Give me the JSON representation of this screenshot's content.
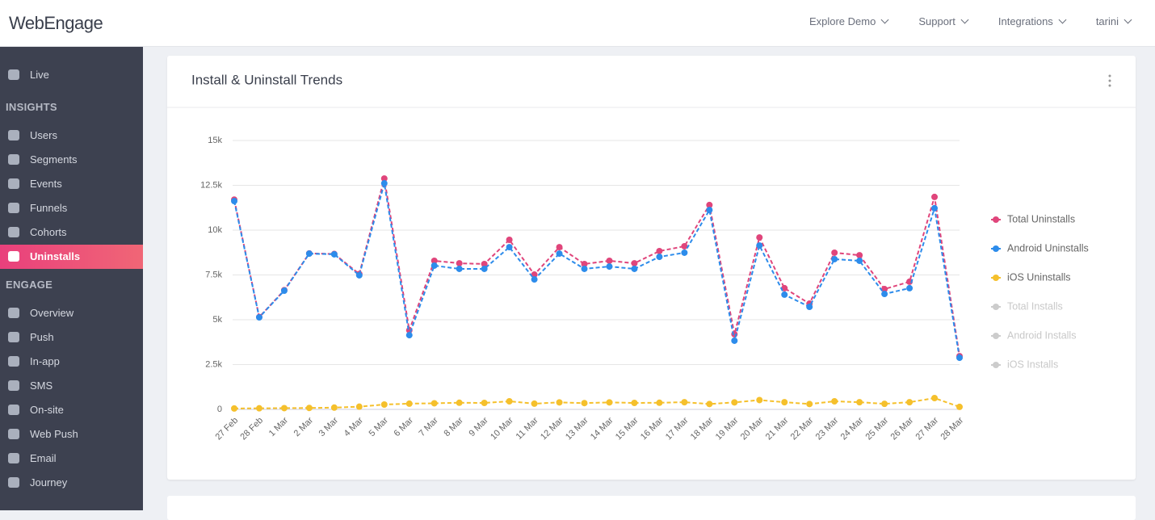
{
  "header": {
    "logo": "WebEngage",
    "nav": [
      "Explore Demo",
      "Support",
      "Integrations",
      "tarini"
    ]
  },
  "sidebar": {
    "top": "Live",
    "sections": [
      {
        "title": "INSIGHTS",
        "items": [
          "Users",
          "Segments",
          "Events",
          "Funnels",
          "Cohorts",
          "Uninstalls"
        ]
      },
      {
        "title": "ENGAGE",
        "items": [
          "Overview",
          "Push",
          "In-app",
          "SMS",
          "On-site",
          "Web Push",
          "Email",
          "Journey"
        ]
      }
    ]
  },
  "chart_data": {
    "type": "line",
    "title": "Install & Uninstall Trends",
    "categories": [
      "27 Feb",
      "28 Feb",
      "1 Mar",
      "2 Mar",
      "3 Mar",
      "4 Mar",
      "5 Mar",
      "6 Mar",
      "7 Mar",
      "8 Mar",
      "9 Mar",
      "10 Mar",
      "11 Mar",
      "12 Mar",
      "13 Mar",
      "14 Mar",
      "15 Mar",
      "16 Mar",
      "17 Mar",
      "18 Mar",
      "19 Mar",
      "20 Mar",
      "21 Mar",
      "22 Mar",
      "23 Mar",
      "24 Mar",
      "25 Mar",
      "26 Mar",
      "27 Mar",
      "28 Mar"
    ],
    "series": [
      {
        "name": "Total Uninstalls",
        "color": "#e0457b",
        "visible": true,
        "values": [
          11700,
          5150,
          6650,
          8700,
          8670,
          7550,
          12880,
          4410,
          8290,
          8150,
          8110,
          9460,
          7520,
          9050,
          8110,
          8290,
          8150,
          8830,
          9100,
          11400,
          4190,
          9590,
          6760,
          5900,
          8740,
          8600,
          6710,
          7120,
          11850,
          2970
        ]
      },
      {
        "name": "Android Uninstalls",
        "color": "#2d8ceb",
        "visible": true,
        "values": [
          11620,
          5135,
          6620,
          8690,
          8650,
          7480,
          12610,
          4140,
          8020,
          7840,
          7840,
          9050,
          7250,
          8690,
          7840,
          7970,
          7840,
          8510,
          8740,
          11120,
          3830,
          9140,
          6400,
          5720,
          8380,
          8290,
          6440,
          6760,
          11220,
          2880
        ]
      },
      {
        "name": "iOS Uninstalls",
        "color": "#f5c02c",
        "visible": true,
        "values": [
          50,
          60,
          70,
          80,
          100,
          150,
          270,
          320,
          340,
          370,
          360,
          450,
          320,
          390,
          350,
          390,
          360,
          370,
          400,
          300,
          390,
          520,
          400,
          300,
          450,
          400,
          310,
          400,
          630,
          140
        ]
      },
      {
        "name": "Total Installs",
        "color": "#cccccc",
        "visible": false
      },
      {
        "name": "Android Installs",
        "color": "#cccccc",
        "visible": false
      },
      {
        "name": "iOS Installs",
        "color": "#cccccc",
        "visible": false
      }
    ],
    "ylim": [
      0,
      15000
    ],
    "yticks": [
      0,
      {
        "value": 2500,
        "label": "2.5k"
      },
      {
        "value": 5000,
        "label": "5k"
      },
      {
        "value": 7500,
        "label": "7.5k"
      },
      {
        "value": 10000,
        "label": "10k"
      },
      {
        "value": 12500,
        "label": "12.5k"
      },
      {
        "value": 15000,
        "label": "15k"
      }
    ],
    "grid": true,
    "legend": "right"
  }
}
